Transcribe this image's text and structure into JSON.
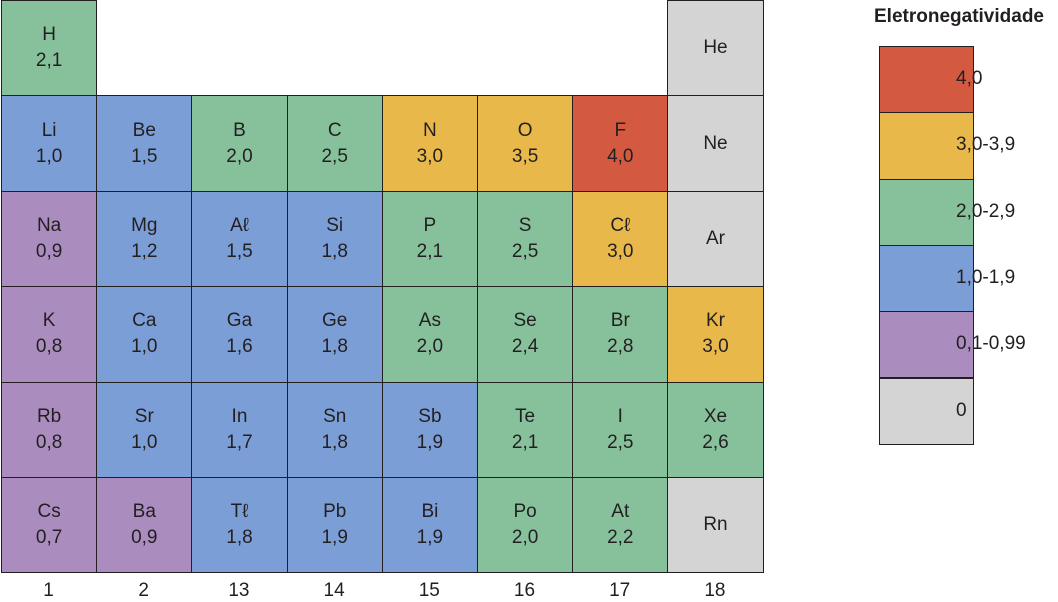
{
  "legend": {
    "title": "Eletronegatividade",
    "items": [
      {
        "label": "4,0",
        "color": "#d35a40"
      },
      {
        "label": "3,0-3,9",
        "color": "#e8b84a"
      },
      {
        "label": "2,0-2,9",
        "color": "#86c19c"
      },
      {
        "label": "1,0-1,9",
        "color": "#7b9ed6"
      },
      {
        "label": "0,1-0,99",
        "color": "#ab8cbf"
      },
      {
        "label": "0",
        "color": "#d4d4d4"
      }
    ]
  },
  "groups": [
    "1",
    "2",
    "13",
    "14",
    "15",
    "16",
    "17",
    "18"
  ],
  "elements": [
    {
      "symbol": "H",
      "value": "2,1",
      "group": 1,
      "period": 1,
      "category": 2
    },
    {
      "symbol": "He",
      "value": "",
      "group": 8,
      "period": 1,
      "category": 5
    },
    {
      "symbol": "Li",
      "value": "1,0",
      "group": 1,
      "period": 2,
      "category": 3
    },
    {
      "symbol": "Be",
      "value": "1,5",
      "group": 2,
      "period": 2,
      "category": 3
    },
    {
      "symbol": "B",
      "value": "2,0",
      "group": 3,
      "period": 2,
      "category": 2
    },
    {
      "symbol": "C",
      "value": "2,5",
      "group": 4,
      "period": 2,
      "category": 2
    },
    {
      "symbol": "N",
      "value": "3,0",
      "group": 5,
      "period": 2,
      "category": 1
    },
    {
      "symbol": "O",
      "value": "3,5",
      "group": 6,
      "period": 2,
      "category": 1
    },
    {
      "symbol": "F",
      "value": "4,0",
      "group": 7,
      "period": 2,
      "category": 0
    },
    {
      "symbol": "Ne",
      "value": "",
      "group": 8,
      "period": 2,
      "category": 5
    },
    {
      "symbol": "Na",
      "value": "0,9",
      "group": 1,
      "period": 3,
      "category": 4
    },
    {
      "symbol": "Mg",
      "value": "1,2",
      "group": 2,
      "period": 3,
      "category": 3
    },
    {
      "symbol": "Aℓ",
      "value": "1,5",
      "group": 3,
      "period": 3,
      "category": 3
    },
    {
      "symbol": "Si",
      "value": "1,8",
      "group": 4,
      "period": 3,
      "category": 3
    },
    {
      "symbol": "P",
      "value": "2,1",
      "group": 5,
      "period": 3,
      "category": 2
    },
    {
      "symbol": "S",
      "value": "2,5",
      "group": 6,
      "period": 3,
      "category": 2
    },
    {
      "symbol": "Cℓ",
      "value": "3,0",
      "group": 7,
      "period": 3,
      "category": 1
    },
    {
      "symbol": "Ar",
      "value": "",
      "group": 8,
      "period": 3,
      "category": 5
    },
    {
      "symbol": "K",
      "value": "0,8",
      "group": 1,
      "period": 4,
      "category": 4
    },
    {
      "symbol": "Ca",
      "value": "1,0",
      "group": 2,
      "period": 4,
      "category": 3
    },
    {
      "symbol": "Ga",
      "value": "1,6",
      "group": 3,
      "period": 4,
      "category": 3
    },
    {
      "symbol": "Ge",
      "value": "1,8",
      "group": 4,
      "period": 4,
      "category": 3
    },
    {
      "symbol": "As",
      "value": "2,0",
      "group": 5,
      "period": 4,
      "category": 2
    },
    {
      "symbol": "Se",
      "value": "2,4",
      "group": 6,
      "period": 4,
      "category": 2
    },
    {
      "symbol": "Br",
      "value": "2,8",
      "group": 7,
      "period": 4,
      "category": 2
    },
    {
      "symbol": "Kr",
      "value": "3,0",
      "group": 8,
      "period": 4,
      "category": 1
    },
    {
      "symbol": "Rb",
      "value": "0,8",
      "group": 1,
      "period": 5,
      "category": 4
    },
    {
      "symbol": "Sr",
      "value": "1,0",
      "group": 2,
      "period": 5,
      "category": 3
    },
    {
      "symbol": "In",
      "value": "1,7",
      "group": 3,
      "period": 5,
      "category": 3
    },
    {
      "symbol": "Sn",
      "value": "1,8",
      "group": 4,
      "period": 5,
      "category": 3
    },
    {
      "symbol": "Sb",
      "value": "1,9",
      "group": 5,
      "period": 5,
      "category": 3
    },
    {
      "symbol": "Te",
      "value": "2,1",
      "group": 6,
      "period": 5,
      "category": 2
    },
    {
      "symbol": "I",
      "value": "2,5",
      "group": 7,
      "period": 5,
      "category": 2
    },
    {
      "symbol": "Xe",
      "value": "2,6",
      "group": 8,
      "period": 5,
      "category": 2
    },
    {
      "symbol": "Cs",
      "value": "0,7",
      "group": 1,
      "period": 6,
      "category": 4
    },
    {
      "symbol": "Ba",
      "value": "0,9",
      "group": 2,
      "period": 6,
      "category": 4
    },
    {
      "symbol": "Tℓ",
      "value": "1,8",
      "group": 3,
      "period": 6,
      "category": 3
    },
    {
      "symbol": "Pb",
      "value": "1,9",
      "group": 4,
      "period": 6,
      "category": 3
    },
    {
      "symbol": "Bi",
      "value": "1,9",
      "group": 5,
      "period": 6,
      "category": 3
    },
    {
      "symbol": "Po",
      "value": "2,0",
      "group": 6,
      "period": 6,
      "category": 2
    },
    {
      "symbol": "At",
      "value": "2,2",
      "group": 7,
      "period": 6,
      "category": 2
    },
    {
      "symbol": "Rn",
      "value": "",
      "group": 8,
      "period": 6,
      "category": 5
    }
  ]
}
